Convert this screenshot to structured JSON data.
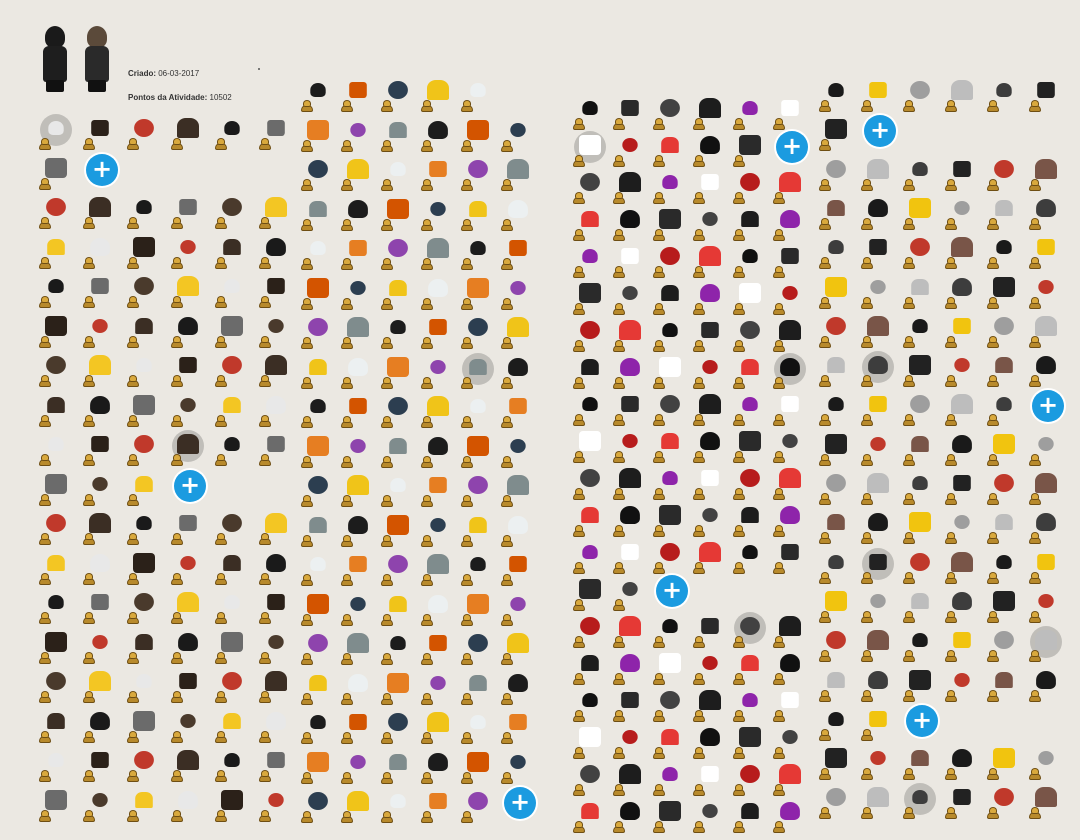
{
  "profile": {
    "created_label": "Criado:",
    "created_value": "06-03-2017",
    "points_label": "Pontos da Atividade:",
    "points_value": "10502"
  },
  "add_button_symbol": "+",
  "icons": {
    "add": "plus-icon",
    "rarity": "poop-rarity-icon",
    "item": "wardrobe-item-icon"
  },
  "colors": {
    "background": "#ebe8e2",
    "add_button": "#1b9be0",
    "rarity_badge": "#b88a2c",
    "selected_halo": "#c9c6c1"
  },
  "panels": [
    {
      "name": "faces-hair-hats",
      "rows": [
        {
          "count": 6,
          "selected": [
            0
          ]
        },
        {
          "count": 1,
          "selected": [],
          "plus": true
        },
        {
          "count": 6,
          "selected": []
        },
        {
          "count": 6,
          "selected": []
        },
        {
          "count": 6,
          "selected": []
        },
        {
          "count": 6,
          "selected": []
        },
        {
          "count": 6,
          "selected": []
        },
        {
          "count": 6,
          "selected": []
        },
        {
          "count": 6,
          "selected": [
            3
          ]
        },
        {
          "count": 3,
          "selected": [],
          "plus": true
        },
        {
          "count": 6,
          "selected": []
        },
        {
          "count": 6,
          "selected": []
        },
        {
          "count": 6,
          "selected": []
        },
        {
          "count": 6,
          "selected": []
        },
        {
          "count": 6,
          "selected": []
        },
        {
          "count": 6,
          "selected": []
        },
        {
          "count": 6,
          "selected": []
        },
        {
          "count": 6,
          "selected": []
        }
      ]
    },
    {
      "name": "hats-accessories-masks",
      "rows": [
        {
          "count": 5,
          "selected": []
        },
        {
          "count": 6,
          "selected": []
        },
        {
          "count": 6,
          "selected": []
        },
        {
          "count": 6,
          "selected": []
        },
        {
          "count": 6,
          "selected": []
        },
        {
          "count": 6,
          "selected": []
        },
        {
          "count": 6,
          "selected": []
        },
        {
          "count": 6,
          "selected": [
            4
          ]
        },
        {
          "count": 6,
          "selected": []
        },
        {
          "count": 6,
          "selected": []
        },
        {
          "count": 6,
          "selected": []
        },
        {
          "count": 6,
          "selected": []
        },
        {
          "count": 6,
          "selected": []
        },
        {
          "count": 6,
          "selected": []
        },
        {
          "count": 6,
          "selected": []
        },
        {
          "count": 6,
          "selected": []
        },
        {
          "count": 6,
          "selected": []
        },
        {
          "count": 6,
          "selected": []
        },
        {
          "count": 5,
          "selected": [],
          "plus": true
        }
      ]
    },
    {
      "name": "shirts-dresses-jackets",
      "rows": [
        {
          "count": 6,
          "selected": []
        },
        {
          "count": 5,
          "selected": [
            0
          ],
          "plus": true
        },
        {
          "count": 6,
          "selected": []
        },
        {
          "count": 6,
          "selected": []
        },
        {
          "count": 6,
          "selected": []
        },
        {
          "count": 6,
          "selected": []
        },
        {
          "count": 6,
          "selected": []
        },
        {
          "count": 6,
          "selected": [
            5
          ]
        },
        {
          "count": 6,
          "selected": []
        },
        {
          "count": 6,
          "selected": []
        },
        {
          "count": 6,
          "selected": []
        },
        {
          "count": 6,
          "selected": []
        },
        {
          "count": 6,
          "selected": []
        },
        {
          "count": 2,
          "selected": [],
          "plus": true
        },
        {
          "count": 6,
          "selected": [
            4
          ]
        },
        {
          "count": 6,
          "selected": []
        },
        {
          "count": 6,
          "selected": []
        },
        {
          "count": 6,
          "selected": []
        },
        {
          "count": 6,
          "selected": []
        },
        {
          "count": 6,
          "selected": []
        }
      ]
    },
    {
      "name": "accessories-pants-shoes",
      "rows": [
        {
          "count": 6,
          "selected": []
        },
        {
          "count": 1,
          "selected": [],
          "plus": true
        },
        {
          "count": 6,
          "selected": []
        },
        {
          "count": 6,
          "selected": []
        },
        {
          "count": 6,
          "selected": []
        },
        {
          "count": 6,
          "selected": []
        },
        {
          "count": 6,
          "selected": []
        },
        {
          "count": 6,
          "selected": [
            1
          ]
        },
        {
          "count": 5,
          "selected": [],
          "plus": true
        },
        {
          "count": 6,
          "selected": []
        },
        {
          "count": 6,
          "selected": []
        },
        {
          "count": 6,
          "selected": []
        },
        {
          "count": 6,
          "selected": [
            1
          ]
        },
        {
          "count": 6,
          "selected": []
        },
        {
          "count": 6,
          "selected": [
            5
          ]
        },
        {
          "count": 6,
          "selected": []
        },
        {
          "count": 2,
          "selected": [],
          "plus": true
        },
        {
          "count": 6,
          "selected": []
        },
        {
          "count": 6,
          "selected": [
            2
          ]
        }
      ]
    }
  ]
}
